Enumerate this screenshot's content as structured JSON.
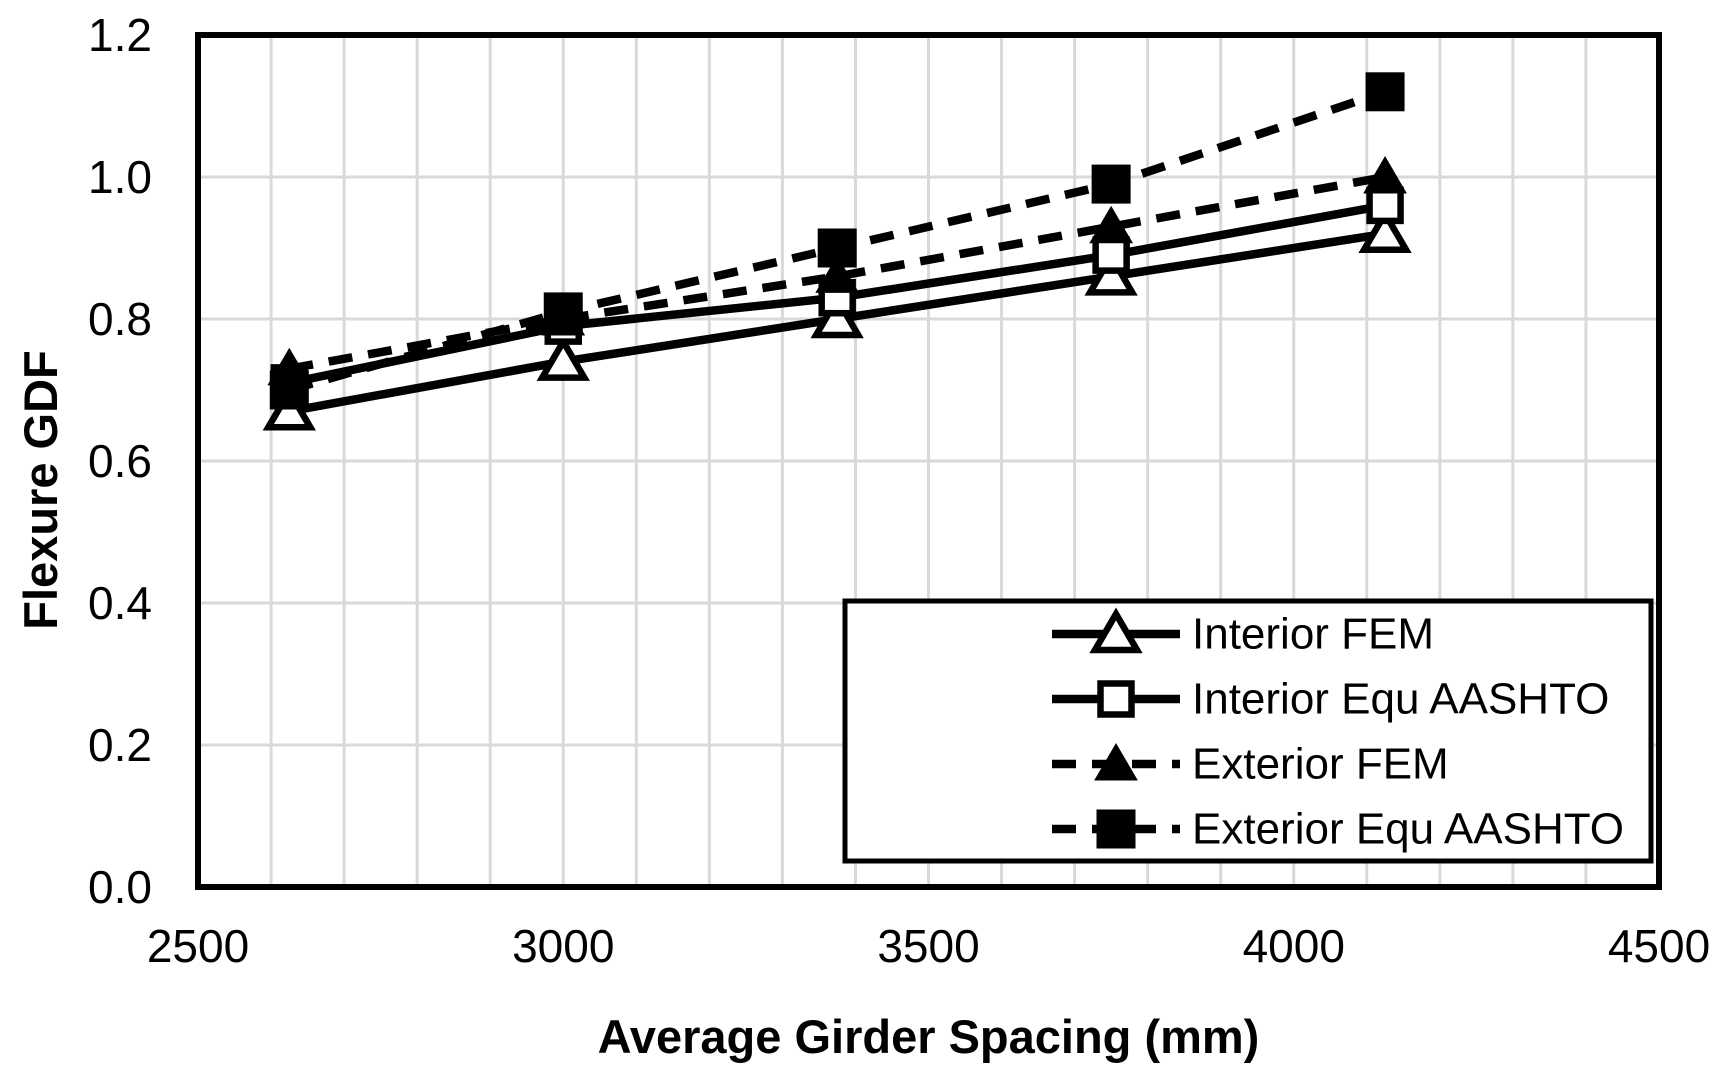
{
  "chart_data": {
    "type": "line",
    "title": "",
    "xlabel": "Average Girder Spacing (mm)",
    "ylabel": "Flexure GDF",
    "xlim": [
      2500,
      4500
    ],
    "ylim": [
      0.0,
      1.2
    ],
    "x_tick_values": [
      2500,
      3000,
      3500,
      4000,
      4500
    ],
    "x_tick_labels": [
      "2500",
      "3000",
      "3500",
      "4000",
      "4500"
    ],
    "y_tick_values": [
      0.0,
      0.2,
      0.4,
      0.6,
      0.8,
      1.0,
      1.2
    ],
    "y_tick_labels": [
      "0.0",
      "0.2",
      "0.4",
      "0.6",
      "0.8",
      "1.0",
      "1.2"
    ],
    "grid": {
      "x_step": 100,
      "y_step": 0.2,
      "on": true
    },
    "x": [
      2625,
      3000,
      3375,
      3750,
      4125
    ],
    "series": [
      {
        "name": "Interior FEM",
        "values": [
          0.67,
          0.74,
          0.8,
          0.86,
          0.92
        ],
        "line_style": "solid",
        "marker": "triangle-open"
      },
      {
        "name": "Interior Equ AASHTO",
        "values": [
          0.71,
          0.79,
          0.83,
          0.89,
          0.96
        ],
        "line_style": "solid",
        "marker": "square-open"
      },
      {
        "name": "Exterior FEM",
        "values": [
          0.73,
          0.8,
          0.86,
          0.93,
          1.0
        ],
        "line_style": "dashed",
        "marker": "triangle-filled"
      },
      {
        "name": "Exterior Equ AASHTO",
        "values": [
          0.7,
          0.81,
          0.9,
          0.99,
          1.12
        ],
        "line_style": "dashed",
        "marker": "square-filled"
      }
    ],
    "legend_position": "inside-bottom-right",
    "colors": {
      "series": "#000000",
      "grid": "#d9d9d9",
      "background": "#ffffff",
      "plot_border": "#000000"
    }
  }
}
